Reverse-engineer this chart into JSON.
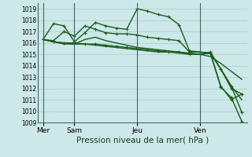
{
  "background_color": "#cce8e8",
  "plot_bg_color": "#cce8e8",
  "grid_color": "#aacccc",
  "line_color": "#1a5c1a",
  "ylim": [
    1009,
    1019.5
  ],
  "ytick_values": [
    1009,
    1010,
    1011,
    1012,
    1013,
    1014,
    1015,
    1016,
    1017,
    1018,
    1019
  ],
  "xlabel": "Pression niveau de la mer( hPa )",
  "xlabel_fontsize": 7.5,
  "day_labels": [
    "Mer",
    "Sam",
    "Jeu",
    "Ven"
  ],
  "day_positions": [
    0,
    3,
    9,
    15
  ],
  "xlim": [
    -0.5,
    19.5
  ],
  "lines": [
    {
      "x": [
        0,
        1,
        2,
        3,
        4,
        5,
        6,
        7,
        8,
        9,
        10,
        11,
        12,
        13,
        14,
        15,
        16,
        17,
        18,
        19
      ],
      "y": [
        1016.3,
        1016.1,
        1016.0,
        1016.0,
        1015.9,
        1015.8,
        1015.7,
        1015.6,
        1015.5,
        1015.4,
        1015.3,
        1015.2,
        1015.2,
        1015.1,
        1015.0,
        1015.0,
        1014.8,
        1014.2,
        1013.5,
        1012.8
      ],
      "marker": null,
      "lw": 1.0
    },
    {
      "x": [
        0,
        1,
        2,
        3,
        4,
        5,
        6,
        7,
        8,
        9,
        10,
        11,
        12,
        13,
        14,
        15,
        16,
        17,
        18,
        19
      ],
      "y": [
        1016.3,
        1016.1,
        1015.9,
        1015.9,
        1016.3,
        1016.5,
        1016.2,
        1016.0,
        1015.8,
        1015.6,
        1015.5,
        1015.4,
        1015.3,
        1015.2,
        1015.1,
        1015.0,
        1015.1,
        1013.7,
        1012.2,
        1011.0
      ],
      "marker": null,
      "lw": 1.0
    },
    {
      "x": [
        0,
        1,
        2,
        3,
        4,
        5,
        6,
        7,
        8,
        9,
        10,
        11,
        12,
        13,
        14,
        15,
        16,
        17,
        18,
        19
      ],
      "y": [
        1016.3,
        1017.7,
        1017.5,
        1016.1,
        1016.9,
        1017.8,
        1017.5,
        1017.3,
        1017.2,
        1019.0,
        1018.8,
        1018.5,
        1018.3,
        1017.6,
        1015.3,
        1015.2,
        1015.1,
        1013.7,
        1012.0,
        1011.5
      ],
      "marker": "+",
      "lw": 1.0
    },
    {
      "x": [
        0,
        1,
        2,
        3,
        4,
        5,
        6,
        7,
        8,
        9,
        10,
        11,
        12,
        13,
        14,
        15,
        16,
        17,
        18,
        19
      ],
      "y": [
        1016.3,
        1016.2,
        1017.0,
        1016.6,
        1017.5,
        1017.2,
        1016.9,
        1016.8,
        1016.8,
        1016.7,
        1016.5,
        1016.4,
        1016.3,
        1016.2,
        1015.2,
        1015.2,
        1015.1,
        1012.2,
        1011.0,
        1011.5
      ],
      "marker": "+",
      "lw": 1.0
    },
    {
      "x": [
        0,
        1,
        2,
        3,
        4,
        5,
        6,
        7,
        8,
        9,
        10,
        11,
        12,
        13,
        14,
        15,
        16,
        17,
        18,
        19
      ],
      "y": [
        1016.3,
        1016.1,
        1016.0,
        1015.9,
        1015.9,
        1015.9,
        1015.8,
        1015.7,
        1015.6,
        1015.5,
        1015.4,
        1015.3,
        1015.2,
        1015.2,
        1015.0,
        1015.0,
        1015.2,
        1013.7,
        1012.2,
        1009.9
      ],
      "marker": "+",
      "lw": 1.0
    },
    {
      "x": [
        15,
        16,
        17,
        18,
        19
      ],
      "y": [
        1015.0,
        1015.1,
        1012.1,
        1011.2,
        1009.1
      ],
      "marker": "+",
      "lw": 1.0
    }
  ]
}
